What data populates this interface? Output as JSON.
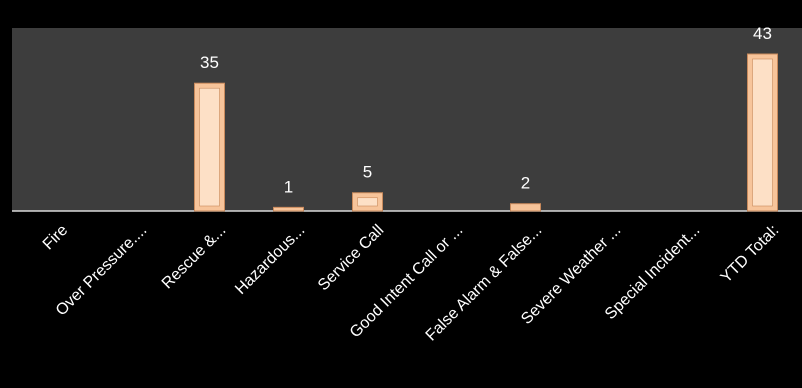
{
  "chart_data": {
    "type": "bar",
    "categories": [
      "Fire",
      "Over Pressure....",
      "Rescue &...",
      "Hazardous...",
      "Service Call",
      "Good Intent Call or ...",
      "False Alarm & False...",
      "Severe Weather ...",
      "Special Incident...",
      "YTD Total:"
    ],
    "values": [
      0,
      0,
      35,
      1,
      5,
      0,
      2,
      0,
      0,
      43
    ],
    "data_labels": [
      "",
      "",
      "35",
      "1",
      "5",
      "",
      "2",
      "",
      "",
      "43"
    ],
    "ylim": [
      0,
      43
    ],
    "grid": false,
    "legend": "none",
    "colors": {
      "plot_background": "#3d3d3d",
      "page_background": "#000000",
      "bar_fill": "#f7c49a",
      "bar_edge": "#c98a5c",
      "bar_inner": "#fde0c6",
      "axis": "#d9d9d9",
      "text": "#ffffff"
    }
  }
}
